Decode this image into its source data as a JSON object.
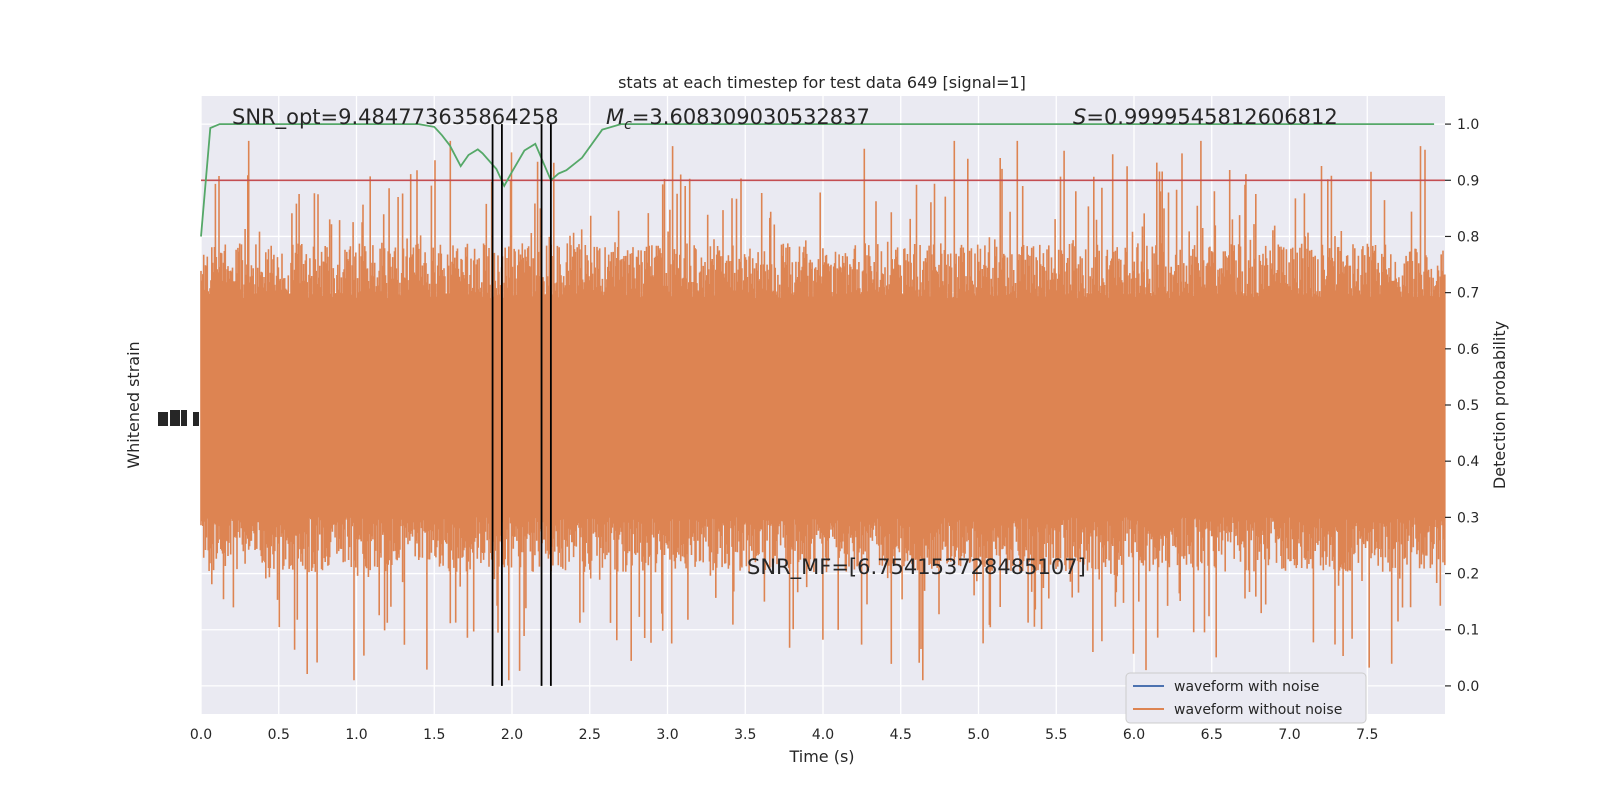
{
  "chart_data": {
    "type": "line",
    "title": "stats at each timestep for test data 649 [signal=1]",
    "xlabel": "Time (s)",
    "ylabel_left": "Whitened strain",
    "ylabel_right": "Detection probability",
    "xlim": [
      0,
      8
    ],
    "ylim_right": [
      -0.05,
      1.05
    ],
    "x_ticks": [
      "0.0",
      "0.5",
      "1.0",
      "1.5",
      "2.0",
      "2.5",
      "3.0",
      "3.5",
      "4.0",
      "4.5",
      "5.0",
      "5.5",
      "6.0",
      "6.5",
      "7.0",
      "7.5"
    ],
    "x_tick_values": [
      0,
      0.5,
      1,
      1.5,
      2,
      2.5,
      3,
      3.5,
      4,
      4.5,
      5,
      5.5,
      6,
      6.5,
      7,
      7.5
    ],
    "y_right_ticks": [
      "0.0",
      "0.1",
      "0.2",
      "0.3",
      "0.4",
      "0.5",
      "0.6",
      "0.7",
      "0.8",
      "0.9",
      "1.0"
    ],
    "y_right_tick_values": [
      0,
      0.1,
      0.2,
      0.3,
      0.4,
      0.5,
      0.6,
      0.7,
      0.8,
      0.9,
      1.0
    ],
    "grid": true,
    "threshold": {
      "value": 0.9,
      "color": "#c44e52"
    },
    "event_lines": [
      1.875,
      1.935,
      2.19,
      2.25
    ],
    "annotations": {
      "snr_opt": "SNR_opt=9.484773635864258",
      "mc_symbol": "M",
      "mc_sub": "c",
      "mc_value": "=3.608309030532837",
      "s_symbol": "S",
      "s_value": "=0.9999545812606812",
      "snr_mf": "SNR_MF=[6.754153728485107]"
    },
    "legend": {
      "position": "bottom-right",
      "entries": [
        {
          "label": "waveform with noise",
          "color": "#4c72b0"
        },
        {
          "label": "waveform without noise",
          "color": "#dd8452"
        }
      ]
    },
    "series": [
      {
        "name": "waveform without noise",
        "color": "#dd8452",
        "kind": "dense-strain",
        "core_band": [
          0.3,
          0.69
        ],
        "outer_band": [
          0.01,
          0.97
        ]
      },
      {
        "name": "detection probability",
        "color": "#55a868",
        "x": [
          0.0,
          0.06,
          0.12,
          0.2,
          0.4,
          0.8,
          1.2,
          1.4,
          1.5,
          1.55,
          1.6,
          1.67,
          1.72,
          1.78,
          1.81,
          1.9,
          1.95,
          2.0,
          2.08,
          2.15,
          2.25,
          2.3,
          2.35,
          2.45,
          2.58,
          2.7,
          3.0,
          4.0,
          5.0,
          6.0,
          7.0,
          7.93
        ],
        "y": [
          0.8,
          0.993,
          1.0,
          1.0,
          1.0,
          1.0,
          1.0,
          1.0,
          0.995,
          0.98,
          0.962,
          0.925,
          0.945,
          0.955,
          0.948,
          0.92,
          0.89,
          0.915,
          0.953,
          0.965,
          0.9,
          0.912,
          0.918,
          0.94,
          0.99,
          1.0,
          1.0,
          1.0,
          1.0,
          1.0,
          1.0,
          1.0
        ]
      }
    ]
  }
}
